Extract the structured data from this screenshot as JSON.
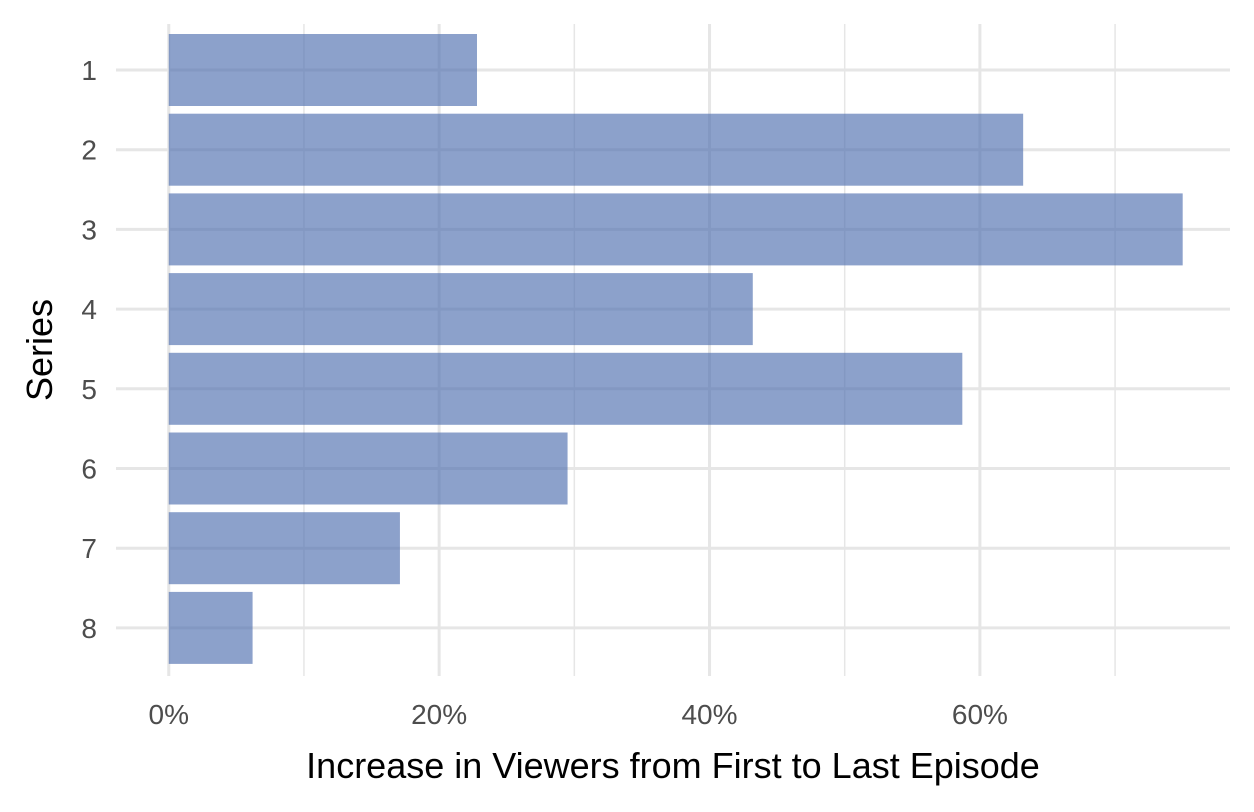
{
  "chart_data": {
    "type": "bar",
    "orientation": "horizontal",
    "categories": [
      "1",
      "2",
      "3",
      "4",
      "5",
      "6",
      "7",
      "8"
    ],
    "values": [
      22.8,
      63.2,
      75.0,
      43.2,
      58.7,
      29.5,
      17.1,
      6.2
    ],
    "xlabel": "Increase in Viewers from First to Last Episode",
    "ylabel": "Series",
    "xlim": [
      -0.5,
      78.5
    ],
    "x_ticks": [
      {
        "value": 0,
        "label": "0%"
      },
      {
        "value": 20,
        "label": "20%"
      },
      {
        "value": 40,
        "label": "40%"
      },
      {
        "value": 60,
        "label": "60%"
      }
    ],
    "x_minor_ticks": [
      10,
      30,
      50,
      70
    ],
    "grid": true,
    "bar_color": "#4e6faf",
    "bar_opacity": 0.65,
    "grid_color": "#e6e6e6"
  }
}
